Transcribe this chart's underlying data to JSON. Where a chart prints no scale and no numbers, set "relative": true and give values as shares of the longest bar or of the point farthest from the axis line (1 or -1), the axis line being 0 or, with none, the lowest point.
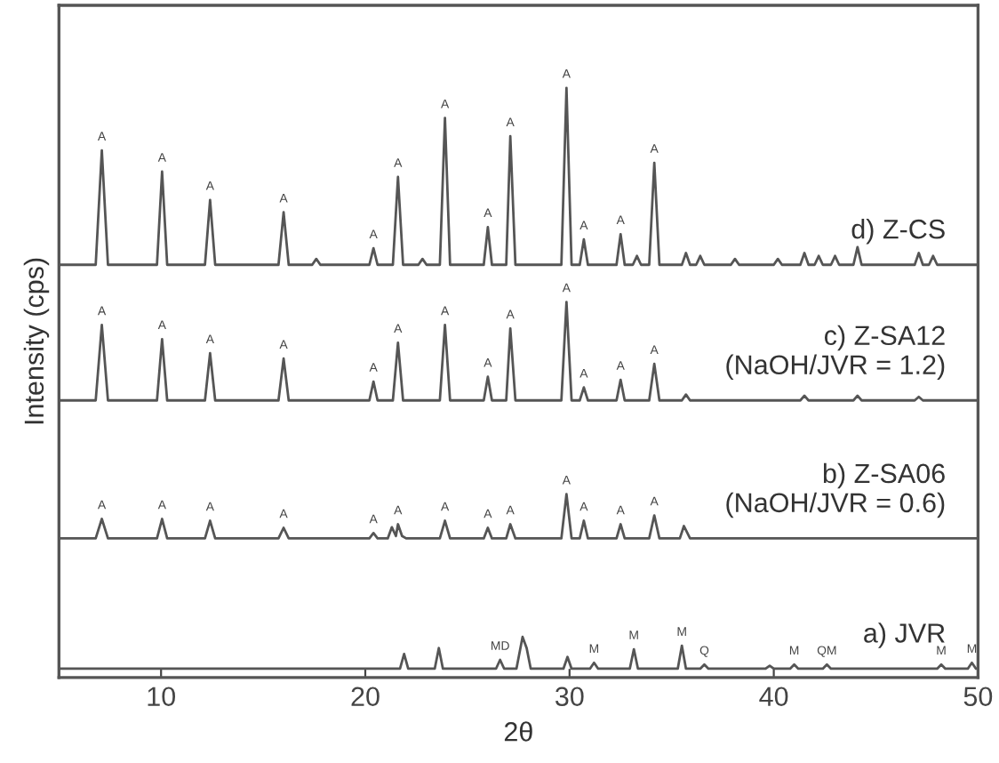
{
  "chart_data": {
    "type": "line",
    "relative": true,
    "xlabel": "2θ",
    "ylabel": "Intensity (cps)",
    "xlim": [
      5,
      50
    ],
    "xticks": [
      10,
      20,
      30,
      40,
      50
    ],
    "grid": false,
    "legend": false,
    "marker": "none",
    "line_style": "solid",
    "series": [
      {
        "name": "d) Z-CS",
        "color": "#555555",
        "x": [
          5.0,
          6.8,
          7.1,
          7.4,
          9.8,
          10.05,
          10.3,
          12.15,
          12.4,
          12.65,
          15.75,
          16.0,
          16.25,
          17.4,
          17.6,
          17.8,
          20.2,
          20.4,
          20.6,
          21.35,
          21.6,
          21.85,
          22.6,
          22.8,
          23.0,
          23.65,
          23.9,
          24.15,
          25.8,
          26.0,
          26.2,
          26.9,
          27.1,
          27.35,
          29.6,
          29.85,
          30.1,
          30.5,
          30.7,
          30.9,
          32.3,
          32.5,
          32.7,
          33.1,
          33.3,
          33.5,
          33.9,
          34.15,
          34.4,
          35.5,
          35.7,
          35.9,
          36.2,
          36.4,
          36.6,
          37.9,
          38.1,
          38.3,
          40.0,
          40.2,
          40.4,
          41.3,
          41.5,
          41.7,
          42.0,
          42.2,
          42.4,
          42.8,
          43.0,
          43.2,
          43.9,
          44.1,
          44.3,
          46.9,
          47.1,
          47.3,
          47.6,
          47.8,
          48.0,
          50.0
        ],
        "values": [
          0.7,
          0.7,
          0.894,
          0.7,
          0.7,
          0.858,
          0.7,
          0.7,
          0.81,
          0.7,
          0.7,
          0.789,
          0.7,
          0.7,
          0.71,
          0.7,
          0.7,
          0.728,
          0.7,
          0.7,
          0.849,
          0.7,
          0.7,
          0.71,
          0.7,
          0.7,
          0.949,
          0.7,
          0.7,
          0.764,
          0.7,
          0.7,
          0.918,
          0.7,
          0.7,
          1.0,
          0.7,
          0.7,
          0.743,
          0.7,
          0.7,
          0.752,
          0.7,
          0.7,
          0.715,
          0.7,
          0.7,
          0.873,
          0.7,
          0.7,
          0.72,
          0.7,
          0.7,
          0.715,
          0.7,
          0.7,
          0.71,
          0.7,
          0.7,
          0.71,
          0.7,
          0.7,
          0.72,
          0.7,
          0.7,
          0.715,
          0.7,
          0.7,
          0.715,
          0.7,
          0.7,
          0.73,
          0.7,
          0.7,
          0.72,
          0.7,
          0.7,
          0.715,
          0.7,
          0.7
        ]
      },
      {
        "name": "c) Z-SA12\n(NaOH/JVR = 1.2)",
        "color": "#555555",
        "x": [
          5.0,
          6.8,
          7.1,
          7.4,
          9.8,
          10.05,
          10.3,
          12.15,
          12.4,
          12.65,
          15.75,
          16.0,
          16.25,
          20.2,
          20.4,
          20.6,
          21.35,
          21.6,
          21.85,
          23.65,
          23.9,
          24.15,
          25.8,
          26.0,
          26.2,
          26.9,
          27.1,
          27.35,
          29.6,
          29.85,
          30.1,
          30.5,
          30.7,
          30.9,
          32.3,
          32.5,
          32.7,
          33.9,
          34.15,
          34.4,
          35.5,
          35.7,
          35.9,
          41.3,
          41.5,
          41.7,
          43.9,
          44.1,
          44.3,
          46.9,
          47.1,
          47.3,
          50.0
        ],
        "values": [
          0.47,
          0.47,
          0.598,
          0.47,
          0.47,
          0.574,
          0.47,
          0.47,
          0.55,
          0.47,
          0.47,
          0.541,
          0.47,
          0.47,
          0.502,
          0.47,
          0.47,
          0.568,
          0.47,
          0.47,
          0.598,
          0.47,
          0.47,
          0.51,
          0.47,
          0.47,
          0.592,
          0.47,
          0.47,
          0.637,
          0.47,
          0.47,
          0.492,
          0.47,
          0.47,
          0.505,
          0.47,
          0.47,
          0.532,
          0.47,
          0.47,
          0.48,
          0.47,
          0.47,
          0.478,
          0.47,
          0.47,
          0.478,
          0.47,
          0.47,
          0.476,
          0.47,
          0.47
        ]
      },
      {
        "name": "b) Z-SA06\n(NaOH/JVR = 0.6)",
        "color": "#555555",
        "x": [
          5.0,
          6.8,
          7.1,
          7.4,
          9.8,
          10.05,
          10.3,
          12.15,
          12.4,
          12.65,
          15.75,
          16.0,
          16.25,
          20.2,
          20.4,
          20.6,
          21.1,
          21.3,
          21.5,
          21.6,
          21.8,
          22.0,
          23.65,
          23.9,
          24.15,
          25.8,
          26.0,
          26.2,
          26.9,
          27.1,
          27.35,
          29.6,
          29.85,
          30.1,
          30.5,
          30.7,
          30.9,
          32.3,
          32.5,
          32.7,
          33.9,
          34.15,
          34.4,
          35.4,
          35.6,
          35.9,
          50.0
        ],
        "values": [
          0.236,
          0.236,
          0.269,
          0.236,
          0.236,
          0.269,
          0.236,
          0.236,
          0.266,
          0.236,
          0.236,
          0.254,
          0.236,
          0.236,
          0.245,
          0.236,
          0.236,
          0.255,
          0.24,
          0.26,
          0.24,
          0.236,
          0.236,
          0.266,
          0.236,
          0.236,
          0.254,
          0.236,
          0.236,
          0.26,
          0.236,
          0.236,
          0.311,
          0.236,
          0.236,
          0.266,
          0.236,
          0.236,
          0.26,
          0.236,
          0.236,
          0.275,
          0.236,
          0.236,
          0.257,
          0.236,
          0.236
        ]
      },
      {
        "name": "a) JVR",
        "color": "#555555",
        "x": [
          5.0,
          21.7,
          21.9,
          22.1,
          23.4,
          23.6,
          23.8,
          26.4,
          26.6,
          26.8,
          27.4,
          27.7,
          27.9,
          28.1,
          29.7,
          29.9,
          30.1,
          31.0,
          31.2,
          31.4,
          32.95,
          33.15,
          33.35,
          35.3,
          35.5,
          35.7,
          36.4,
          36.6,
          36.8,
          39.6,
          39.8,
          40.0,
          40.8,
          41.0,
          41.2,
          42.4,
          42.6,
          42.8,
          48.0,
          48.2,
          48.4,
          49.5,
          49.7,
          49.9,
          50.0
        ],
        "values": [
          0.015,
          0.015,
          0.04,
          0.015,
          0.015,
          0.05,
          0.015,
          0.015,
          0.03,
          0.015,
          0.015,
          0.069,
          0.05,
          0.015,
          0.015,
          0.035,
          0.015,
          0.015,
          0.025,
          0.015,
          0.015,
          0.048,
          0.015,
          0.015,
          0.054,
          0.015,
          0.015,
          0.022,
          0.015,
          0.015,
          0.02,
          0.015,
          0.015,
          0.022,
          0.015,
          0.015,
          0.022,
          0.015,
          0.015,
          0.022,
          0.015,
          0.015,
          0.025,
          0.015,
          0.015
        ]
      }
    ],
    "annotations": [
      {
        "text": "A",
        "x": 7.1,
        "y": 0.894
      },
      {
        "text": "A",
        "x": 10.05,
        "y": 0.858
      },
      {
        "text": "A",
        "x": 12.4,
        "y": 0.81
      },
      {
        "text": "A",
        "x": 16.0,
        "y": 0.789
      },
      {
        "text": "A",
        "x": 20.4,
        "y": 0.728
      },
      {
        "text": "A",
        "x": 21.6,
        "y": 0.849
      },
      {
        "text": "A",
        "x": 23.9,
        "y": 0.949
      },
      {
        "text": "A",
        "x": 26.0,
        "y": 0.764
      },
      {
        "text": "A",
        "x": 27.1,
        "y": 0.918
      },
      {
        "text": "A",
        "x": 29.85,
        "y": 1.0
      },
      {
        "text": "A",
        "x": 30.7,
        "y": 0.743
      },
      {
        "text": "A",
        "x": 32.5,
        "y": 0.752
      },
      {
        "text": "A",
        "x": 34.15,
        "y": 0.873
      },
      {
        "text": "A",
        "x": 7.1,
        "y": 0.598
      },
      {
        "text": "A",
        "x": 10.05,
        "y": 0.574
      },
      {
        "text": "A",
        "x": 12.4,
        "y": 0.55
      },
      {
        "text": "A",
        "x": 16.0,
        "y": 0.541
      },
      {
        "text": "A",
        "x": 20.4,
        "y": 0.502
      },
      {
        "text": "A",
        "x": 21.6,
        "y": 0.568
      },
      {
        "text": "A",
        "x": 23.9,
        "y": 0.598
      },
      {
        "text": "A",
        "x": 26.0,
        "y": 0.51
      },
      {
        "text": "A",
        "x": 27.1,
        "y": 0.592
      },
      {
        "text": "A",
        "x": 29.85,
        "y": 0.637
      },
      {
        "text": "A",
        "x": 30.7,
        "y": 0.492
      },
      {
        "text": "A",
        "x": 32.5,
        "y": 0.505
      },
      {
        "text": "A",
        "x": 34.15,
        "y": 0.532
      },
      {
        "text": "A",
        "x": 7.1,
        "y": 0.269
      },
      {
        "text": "A",
        "x": 10.05,
        "y": 0.269
      },
      {
        "text": "A",
        "x": 12.4,
        "y": 0.266
      },
      {
        "text": "A",
        "x": 16.0,
        "y": 0.254
      },
      {
        "text": "A",
        "x": 20.4,
        "y": 0.245
      },
      {
        "text": "A",
        "x": 21.6,
        "y": 0.26
      },
      {
        "text": "A",
        "x": 23.9,
        "y": 0.266
      },
      {
        "text": "A",
        "x": 26.0,
        "y": 0.254
      },
      {
        "text": "A",
        "x": 27.1,
        "y": 0.26
      },
      {
        "text": "A",
        "x": 29.85,
        "y": 0.311
      },
      {
        "text": "A",
        "x": 30.7,
        "y": 0.266
      },
      {
        "text": "A",
        "x": 32.5,
        "y": 0.26
      },
      {
        "text": "A",
        "x": 34.15,
        "y": 0.275
      },
      {
        "text": "MD",
        "x": 26.6,
        "y": 0.03
      },
      {
        "text": "M",
        "x": 31.2,
        "y": 0.025
      },
      {
        "text": "M",
        "x": 33.15,
        "y": 0.048
      },
      {
        "text": "M",
        "x": 35.5,
        "y": 0.054
      },
      {
        "text": "Q",
        "x": 36.6,
        "y": 0.022
      },
      {
        "text": "M",
        "x": 41.0,
        "y": 0.022
      },
      {
        "text": "QM",
        "x": 42.6,
        "y": 0.022
      },
      {
        "text": "M",
        "x": 48.2,
        "y": 0.022
      },
      {
        "text": "M",
        "x": 49.7,
        "y": 0.025
      }
    ]
  }
}
